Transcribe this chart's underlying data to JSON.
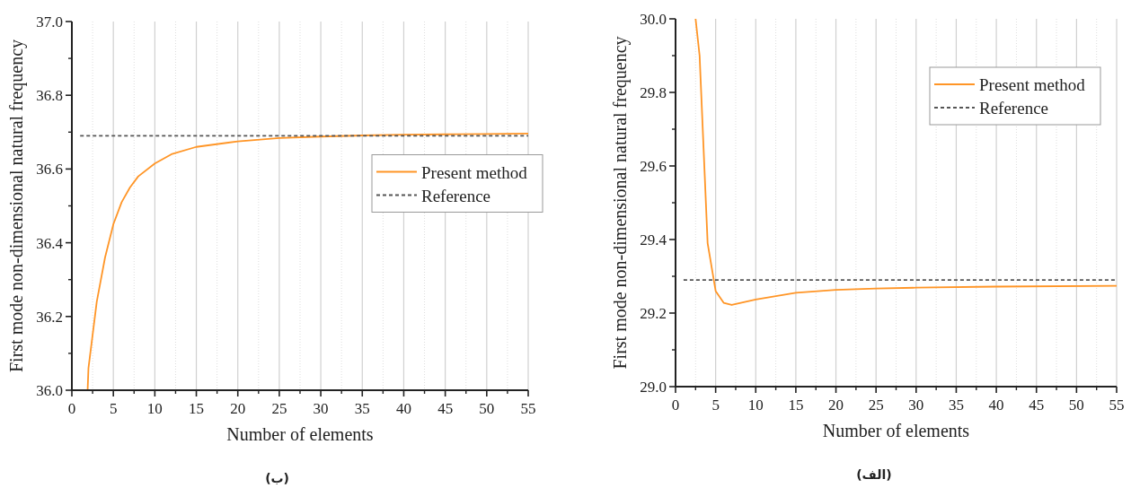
{
  "chart_data": [
    {
      "type": "line",
      "xlabel": "Number of elements",
      "ylabel": "First mode non-dimensional natural frequency",
      "xlim": [
        0,
        55
      ],
      "ylim": [
        36.0,
        37.0
      ],
      "xticks": [
        0,
        5,
        10,
        15,
        20,
        25,
        30,
        35,
        40,
        45,
        50,
        55
      ],
      "yticks": [
        {
          "value": 36,
          "label": "36.0"
        },
        36.2,
        36.4,
        36.6,
        36.8,
        {
          "value": 37,
          "label": "37.0"
        }
      ],
      "grid": "x",
      "legend": "right",
      "series": [
        {
          "name": "Present method",
          "color": "#ff9526",
          "line_style": "solid",
          "x": [
            1.9,
            2,
            3,
            4,
            5,
            6,
            7,
            8,
            10,
            12,
            15,
            20,
            25,
            30,
            35,
            40,
            45,
            50,
            55
          ],
          "values": [
            36.0,
            36.06,
            36.24,
            36.36,
            36.45,
            36.51,
            36.55,
            36.58,
            36.615,
            36.64,
            36.66,
            36.675,
            36.684,
            36.688,
            36.691,
            36.693,
            36.694,
            36.695,
            36.696
          ]
        },
        {
          "name": "Reference",
          "color": "#555555",
          "line_style": "dashed",
          "x": [
            1,
            55
          ],
          "values": [
            36.69,
            36.69
          ]
        }
      ],
      "annotations": [
        "(ب)"
      ]
    },
    {
      "type": "line",
      "xlabel": "Number of elements",
      "ylabel": "First mode non-dimensional natural frequency",
      "xlim": [
        0,
        55
      ],
      "ylim": [
        29.0,
        30.0
      ],
      "xticks": [
        0,
        5,
        10,
        15,
        20,
        25,
        30,
        35,
        40,
        45,
        50,
        55
      ],
      "yticks": [
        {
          "value": 29,
          "label": "29.0"
        },
        29.2,
        29.4,
        29.6,
        29.8,
        {
          "value": 30,
          "label": "30.0"
        }
      ],
      "grid": "x",
      "legend": "top right",
      "series": [
        {
          "name": "Present method",
          "color": "#ff9526",
          "line_style": "solid",
          "x": [
            2.5,
            3,
            4,
            5,
            6,
            7,
            10,
            15,
            20,
            25,
            30,
            40,
            55
          ],
          "values": [
            30.0,
            29.9,
            29.39,
            29.26,
            29.228,
            29.222,
            29.237,
            29.255,
            29.263,
            29.267,
            29.269,
            29.272,
            29.274
          ]
        },
        {
          "name": "Reference",
          "color": "#555555",
          "line_style": "dashed",
          "x": [
            1,
            55
          ],
          "values": [
            29.29,
            29.29
          ]
        }
      ],
      "annotations": [
        "(الف)"
      ]
    }
  ]
}
